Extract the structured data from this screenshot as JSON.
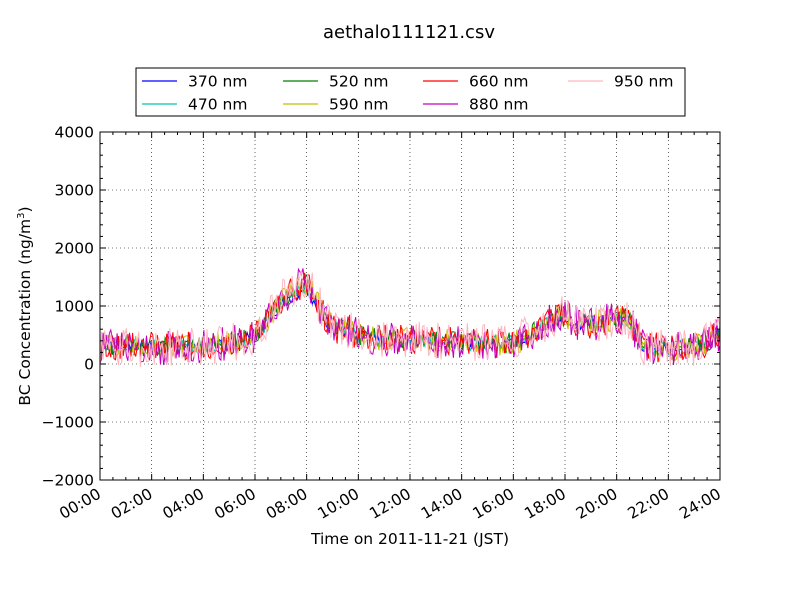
{
  "chart_data": {
    "type": "line",
    "title": "aethalo111121.csv",
    "xlabel": "Time on 2011-11-21 (JST)",
    "ylabel": "BC Concentration (ng/m",
    "ylabel_sup": "3",
    "ylabel_end": ")",
    "x_unit": "hours",
    "xlim": [
      0,
      24
    ],
    "ylim": [
      -2000,
      4000
    ],
    "x_ticks": [
      0,
      2,
      4,
      6,
      8,
      10,
      12,
      14,
      16,
      18,
      20,
      22,
      24
    ],
    "x_tick_labels": [
      "00:00",
      "02:00",
      "04:00",
      "06:00",
      "08:00",
      "10:00",
      "12:00",
      "14:00",
      "16:00",
      "18:00",
      "20:00",
      "22:00",
      "24:00"
    ],
    "y_ticks": [
      -2000,
      -1000,
      0,
      1000,
      2000,
      3000,
      4000
    ],
    "y_tick_labels": [
      "−2000",
      "−1000",
      "0",
      "1000",
      "2000",
      "3000",
      "4000"
    ],
    "grid": true,
    "legend_position": "top, above plot",
    "series": [
      {
        "name": "370 nm",
        "color": "#0000ff",
        "values": [
          [
            0.0,
            350
          ],
          [
            1.0,
            330
          ],
          [
            2.0,
            310
          ],
          [
            3.0,
            300
          ],
          [
            4.0,
            320
          ],
          [
            5.0,
            380
          ],
          [
            6.0,
            480
          ],
          [
            7.0,
            1020
          ],
          [
            7.5,
            1150
          ],
          [
            8.0,
            1300
          ],
          [
            8.5,
            900
          ],
          [
            9.0,
            600
          ],
          [
            10.0,
            500
          ],
          [
            11.0,
            420
          ],
          [
            12.0,
            420
          ],
          [
            13.0,
            400
          ],
          [
            14.0,
            380
          ],
          [
            15.0,
            360
          ],
          [
            16.0,
            350
          ],
          [
            17.0,
            560
          ],
          [
            17.5,
            720
          ],
          [
            18.0,
            820
          ],
          [
            18.5,
            700
          ],
          [
            19.0,
            680
          ],
          [
            20.0,
            800
          ],
          [
            20.5,
            760
          ],
          [
            21.0,
            300
          ],
          [
            22.0,
            250
          ],
          [
            23.0,
            300
          ],
          [
            23.6,
            400
          ],
          [
            24.0,
            620
          ]
        ]
      },
      {
        "name": "470 nm",
        "color": "#00c5b0",
        "values": [
          [
            0.0,
            340
          ],
          [
            1.0,
            320
          ],
          [
            2.0,
            300
          ],
          [
            3.0,
            300
          ],
          [
            4.0,
            315
          ],
          [
            5.0,
            370
          ],
          [
            6.0,
            470
          ],
          [
            7.0,
            1050
          ],
          [
            7.5,
            1200
          ],
          [
            8.0,
            1350
          ],
          [
            8.5,
            950
          ],
          [
            9.0,
            620
          ],
          [
            10.0,
            510
          ],
          [
            11.0,
            430
          ],
          [
            12.0,
            420
          ],
          [
            13.0,
            400
          ],
          [
            14.0,
            380
          ],
          [
            15.0,
            360
          ],
          [
            16.0,
            360
          ],
          [
            17.0,
            580
          ],
          [
            17.5,
            740
          ],
          [
            18.0,
            830
          ],
          [
            18.5,
            700
          ],
          [
            19.0,
            690
          ],
          [
            20.0,
            790
          ],
          [
            20.5,
            750
          ],
          [
            21.0,
            310
          ],
          [
            22.0,
            260
          ],
          [
            23.0,
            310
          ],
          [
            23.6,
            400
          ],
          [
            24.0,
            600
          ]
        ]
      },
      {
        "name": "520 nm",
        "color": "#008000",
        "values": [
          [
            0.0,
            330
          ],
          [
            1.0,
            320
          ],
          [
            2.0,
            290
          ],
          [
            3.0,
            290
          ],
          [
            4.0,
            310
          ],
          [
            5.0,
            360
          ],
          [
            6.0,
            470
          ],
          [
            7.0,
            1060
          ],
          [
            7.5,
            1230
          ],
          [
            8.0,
            1380
          ],
          [
            8.5,
            960
          ],
          [
            9.0,
            620
          ],
          [
            10.0,
            510
          ],
          [
            11.0,
            430
          ],
          [
            12.0,
            420
          ],
          [
            13.0,
            400
          ],
          [
            14.0,
            380
          ],
          [
            15.0,
            360
          ],
          [
            16.0,
            360
          ],
          [
            17.0,
            590
          ],
          [
            17.5,
            760
          ],
          [
            18.0,
            840
          ],
          [
            18.5,
            700
          ],
          [
            19.0,
            690
          ],
          [
            20.0,
            790
          ],
          [
            20.5,
            740
          ],
          [
            21.0,
            310
          ],
          [
            22.0,
            260
          ],
          [
            23.0,
            310
          ],
          [
            23.6,
            400
          ],
          [
            24.0,
            580
          ]
        ]
      },
      {
        "name": "590 nm",
        "color": "#c0c000",
        "values": [
          [
            0.0,
            320
          ],
          [
            1.0,
            310
          ],
          [
            2.0,
            290
          ],
          [
            3.0,
            290
          ],
          [
            4.0,
            300
          ],
          [
            5.0,
            360
          ],
          [
            6.0,
            460
          ],
          [
            7.0,
            1080
          ],
          [
            7.5,
            1250
          ],
          [
            8.0,
            1400
          ],
          [
            8.5,
            970
          ],
          [
            9.0,
            630
          ],
          [
            10.0,
            510
          ],
          [
            11.0,
            430
          ],
          [
            12.0,
            420
          ],
          [
            13.0,
            400
          ],
          [
            14.0,
            380
          ],
          [
            15.0,
            360
          ],
          [
            16.0,
            360
          ],
          [
            17.0,
            590
          ],
          [
            17.5,
            770
          ],
          [
            18.0,
            850
          ],
          [
            18.5,
            700
          ],
          [
            19.0,
            690
          ],
          [
            20.0,
            790
          ],
          [
            20.5,
            740
          ],
          [
            21.0,
            310
          ],
          [
            22.0,
            260
          ],
          [
            23.0,
            300
          ],
          [
            23.6,
            400
          ],
          [
            24.0,
            560
          ]
        ]
      },
      {
        "name": "660 nm",
        "color": "#ff0000",
        "values": [
          [
            0.0,
            320
          ],
          [
            1.0,
            310
          ],
          [
            2.0,
            290
          ],
          [
            3.0,
            290
          ],
          [
            4.0,
            300
          ],
          [
            5.0,
            360
          ],
          [
            6.0,
            460
          ],
          [
            7.0,
            1090
          ],
          [
            7.5,
            1260
          ],
          [
            8.0,
            1420
          ],
          [
            8.5,
            980
          ],
          [
            9.0,
            630
          ],
          [
            10.0,
            510
          ],
          [
            11.0,
            430
          ],
          [
            12.0,
            420
          ],
          [
            13.0,
            400
          ],
          [
            14.0,
            380
          ],
          [
            15.0,
            360
          ],
          [
            16.0,
            360
          ],
          [
            17.0,
            600
          ],
          [
            17.5,
            780
          ],
          [
            18.0,
            860
          ],
          [
            18.5,
            700
          ],
          [
            19.0,
            690
          ],
          [
            20.0,
            790
          ],
          [
            20.5,
            740
          ],
          [
            21.0,
            310
          ],
          [
            22.0,
            260
          ],
          [
            23.0,
            300
          ],
          [
            23.6,
            400
          ],
          [
            24.0,
            550
          ]
        ]
      },
      {
        "name": "880 nm",
        "color": "#c000c0",
        "values": [
          [
            0.0,
            310
          ],
          [
            1.0,
            300
          ],
          [
            2.0,
            280
          ],
          [
            3.0,
            280
          ],
          [
            4.0,
            300
          ],
          [
            5.0,
            360
          ],
          [
            6.0,
            460
          ],
          [
            7.0,
            1120
          ],
          [
            7.5,
            1300
          ],
          [
            8.0,
            1460
          ],
          [
            8.5,
            1000
          ],
          [
            9.0,
            640
          ],
          [
            10.0,
            510
          ],
          [
            11.0,
            430
          ],
          [
            12.0,
            420
          ],
          [
            13.0,
            400
          ],
          [
            14.0,
            380
          ],
          [
            15.0,
            360
          ],
          [
            16.0,
            360
          ],
          [
            17.0,
            610
          ],
          [
            17.5,
            790
          ],
          [
            18.0,
            870
          ],
          [
            18.5,
            700
          ],
          [
            19.0,
            690
          ],
          [
            20.0,
            790
          ],
          [
            20.5,
            740
          ],
          [
            21.0,
            310
          ],
          [
            22.0,
            260
          ],
          [
            23.0,
            300
          ],
          [
            23.6,
            400
          ],
          [
            24.0,
            540
          ]
        ]
      },
      {
        "name": "950 nm",
        "color": "#ffb6c1",
        "values": [
          [
            0.0,
            300
          ],
          [
            1.0,
            290
          ],
          [
            2.0,
            280
          ],
          [
            3.0,
            280
          ],
          [
            4.0,
            300
          ],
          [
            5.0,
            360
          ],
          [
            6.0,
            460
          ],
          [
            7.0,
            1150
          ],
          [
            7.5,
            1330
          ],
          [
            8.0,
            1500
          ],
          [
            8.5,
            1020
          ],
          [
            9.0,
            650
          ],
          [
            10.0,
            510
          ],
          [
            11.0,
            430
          ],
          [
            12.0,
            420
          ],
          [
            13.0,
            400
          ],
          [
            14.0,
            380
          ],
          [
            15.0,
            360
          ],
          [
            16.0,
            360
          ],
          [
            17.0,
            620
          ],
          [
            17.5,
            800
          ],
          [
            18.0,
            880
          ],
          [
            18.5,
            700
          ],
          [
            19.0,
            690
          ],
          [
            20.0,
            790
          ],
          [
            20.5,
            740
          ],
          [
            21.0,
            310
          ],
          [
            22.0,
            260
          ],
          [
            23.0,
            300
          ],
          [
            23.6,
            400
          ],
          [
            24.0,
            530
          ]
        ]
      }
    ]
  }
}
